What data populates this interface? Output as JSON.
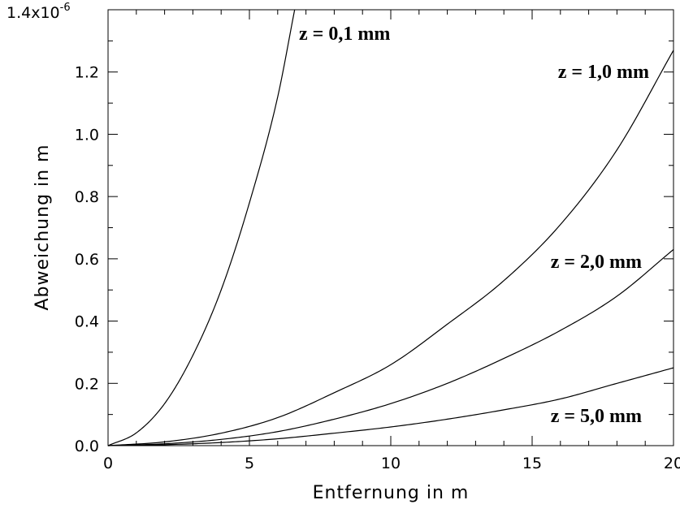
{
  "chart_data": {
    "type": "line",
    "title": "",
    "xlabel": "Entfernung  in  m",
    "ylabel": "Abweichung  in  m",
    "xlim": [
      0,
      20
    ],
    "ylim": [
      0,
      1.4
    ],
    "y_multiplier_label": "1.4x10",
    "y_multiplier_exponent": "-6",
    "x_ticks": [
      0,
      5,
      10,
      15,
      20
    ],
    "x_tick_labels": [
      "0",
      "5",
      "10",
      "15",
      "20"
    ],
    "y_ticks": [
      0,
      0.2,
      0.4,
      0.6,
      0.8,
      1.0,
      1.2
    ],
    "y_tick_labels": [
      "0.0",
      "0.2",
      "0.4",
      "0.6",
      "0.8",
      "1.0",
      "1.2"
    ],
    "grid": false,
    "legend": "none",
    "series": [
      {
        "name": "z = 0,1 mm",
        "x": [
          0,
          1,
          2,
          3,
          4,
          5,
          6,
          6.6
        ],
        "y": [
          0,
          0.041,
          0.135,
          0.29,
          0.5,
          0.78,
          1.12,
          1.4
        ]
      },
      {
        "name": "z = 1,0 mm",
        "x": [
          0,
          2,
          4,
          6,
          8,
          10,
          12,
          14,
          16,
          18,
          20
        ],
        "y": [
          0,
          0.012,
          0.04,
          0.09,
          0.17,
          0.26,
          0.39,
          0.53,
          0.71,
          0.95,
          1.27
        ]
      },
      {
        "name": "z = 2,0 mm",
        "x": [
          0,
          2,
          4,
          6,
          8,
          10,
          12,
          14,
          16,
          18,
          20
        ],
        "y": [
          0,
          0.006,
          0.02,
          0.045,
          0.085,
          0.135,
          0.2,
          0.28,
          0.37,
          0.48,
          0.63
        ]
      },
      {
        "name": "z = 5,0 mm",
        "x": [
          0,
          2,
          4,
          6,
          8,
          10,
          12,
          14,
          16,
          18,
          20
        ],
        "y": [
          0,
          0.003,
          0.01,
          0.022,
          0.04,
          0.06,
          0.085,
          0.115,
          0.15,
          0.2,
          0.25
        ]
      }
    ]
  }
}
